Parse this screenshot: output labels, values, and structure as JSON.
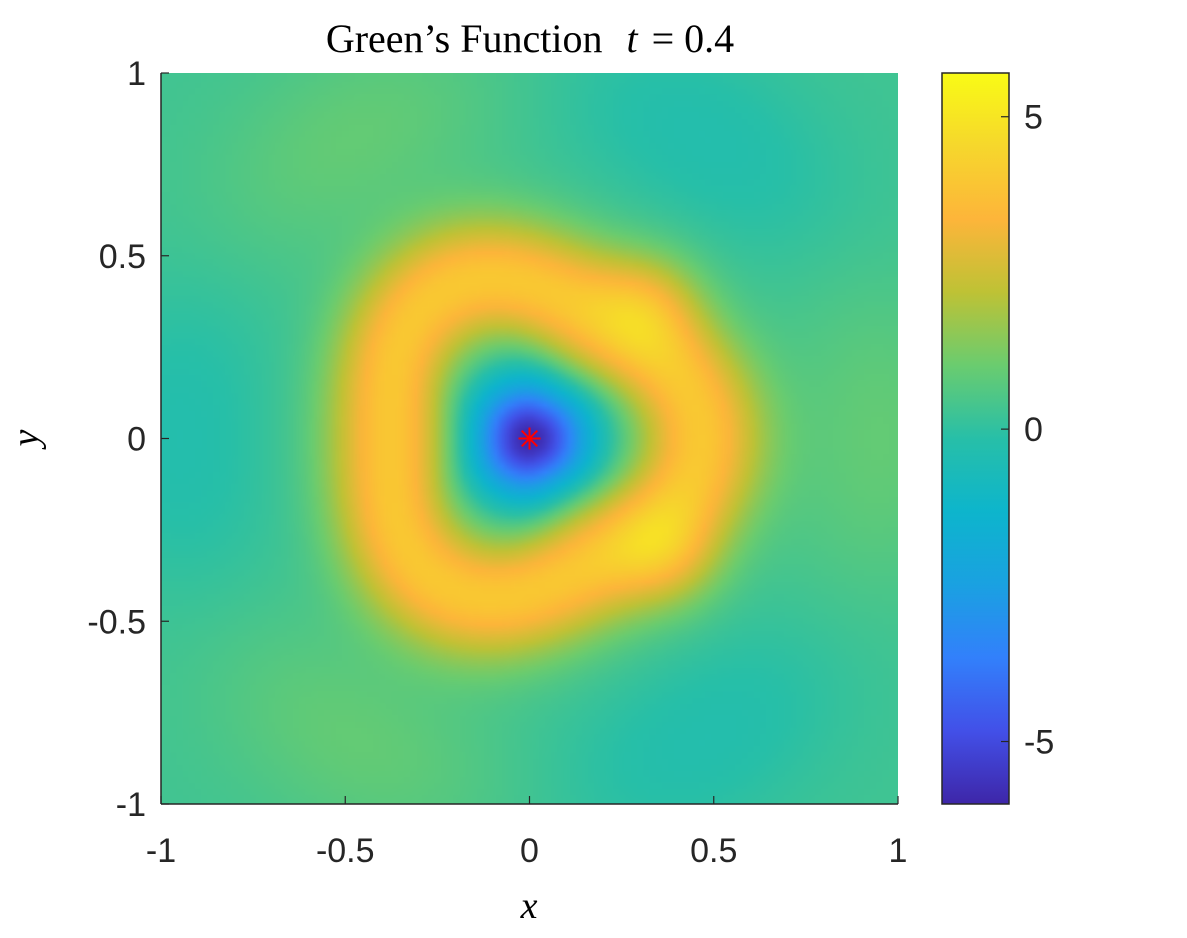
{
  "chart_data": {
    "type": "heatmap",
    "title": "Green’s Function",
    "title_math_var": "t",
    "title_math_eq": "= 0.4",
    "xlabel": "x",
    "ylabel": "y",
    "xlim": [
      -1,
      1
    ],
    "ylim": [
      -1,
      1
    ],
    "x_ticks": [
      -1,
      -0.5,
      0,
      0.5,
      1
    ],
    "x_tick_labels": [
      "-1",
      "-0.5",
      "0",
      "0.5",
      "1"
    ],
    "y_ticks": [
      -1,
      -0.5,
      0,
      0.5,
      1
    ],
    "y_tick_labels": [
      "-1",
      "-0.5",
      "0",
      "0.5",
      "1"
    ],
    "colorbar": {
      "limits": [
        -6,
        5.7
      ],
      "ticks": [
        -5,
        0,
        5
      ],
      "tick_labels": [
        "-5",
        "0",
        "5"
      ],
      "colormap": "parula"
    },
    "marker": {
      "x": 0,
      "y": 0,
      "symbol": "asterisk",
      "color": "#ff0000"
    },
    "field_features": {
      "center_value": -6,
      "ring_radius": 0.42,
      "ring_value": 4.0,
      "lobe_peaks": [
        {
          "x": 0.33,
          "y": 0.38,
          "value": 5.3
        },
        {
          "x": 0.38,
          "y": -0.33,
          "value": 5.3
        }
      ],
      "background_value": 0.3
    }
  }
}
